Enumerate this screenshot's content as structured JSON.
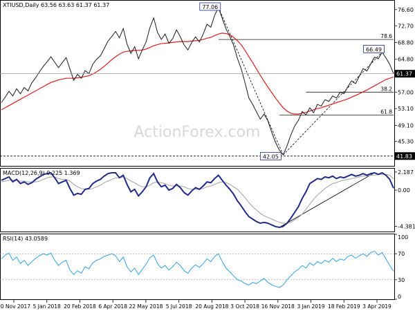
{
  "chart_data": [
    {
      "type": "line",
      "panel": "price",
      "header": "XTIUSD,Daily  63.56 63.63 61.37 61.37",
      "watermark": "ActionForex.com",
      "ylim": [
        39.5,
        78.7
      ],
      "y_ticks": [
        76.6,
        72.7,
        68.8,
        64.8,
        61.37,
        57.0,
        53.1,
        49.1,
        45.3
      ],
      "last_price": 61.37,
      "last_price_label": "61.37",
      "x_tick_labels": [
        "20 Nov 2017",
        "5 Jan 2018",
        "20 Feb 2018",
        "6 Apr 2018",
        "22 May 2018",
        "5 Jul 2018",
        "20 Aug 2018",
        "3 Oct 2018",
        "16 Nov 2018",
        "3 Jan 2019",
        "18 Feb 2019",
        "3 Apr 2019"
      ],
      "series": [
        {
          "values": [
            54.5,
            55.8,
            57.2,
            56.1,
            57.8,
            56.6,
            58.1,
            57.3,
            59.2,
            60.4,
            61.8,
            63.1,
            64.2,
            65.4,
            64.1,
            62.8,
            64.0,
            65.2,
            62.5,
            59.8,
            61.2,
            60.3,
            62.1,
            61.4,
            63.6,
            64.8,
            65.6,
            67.3,
            69.1,
            70.2,
            71.4,
            69.9,
            72.1,
            68.4,
            66.2,
            67.8,
            64.9,
            67.0,
            68.9,
            72.3,
            74.6,
            71.2,
            69.5,
            70.8,
            68.6,
            69.7,
            71.8,
            70.1,
            68.2,
            67.0,
            68.8,
            70.1,
            68.9,
            70.8,
            73.1,
            72.4,
            75.2,
            77.1,
            74.5,
            72.0,
            70.2,
            68.1,
            65.0,
            62.5,
            59.2,
            55.6,
            54.1,
            52.3,
            50.6,
            51.8,
            50.2,
            47.5,
            45.1,
            43.2,
            42.1,
            44.2,
            46.8,
            48.9,
            50.3,
            52.4,
            51.6,
            53.3,
            52.1,
            54.1,
            53.7,
            55.2,
            54.8,
            56.1,
            55.6,
            57.0,
            56.6,
            58.3,
            59.7,
            59.0,
            60.8,
            62.6,
            62.0,
            63.7,
            65.3,
            64.9,
            66.5,
            65.1,
            63.6,
            61.4
          ],
          "color": "#1a1a1a"
        },
        {
          "values": [
            52.8,
            53.3,
            53.8,
            54.3,
            54.8,
            55.3,
            55.8,
            56.3,
            56.8,
            57.3,
            57.8,
            58.3,
            58.8,
            59.3,
            59.6,
            59.9,
            60.1,
            60.3,
            60.3,
            60.3,
            60.4,
            60.5,
            60.7,
            60.9,
            61.3,
            61.8,
            62.4,
            63.1,
            63.9,
            64.7,
            65.4,
            66.0,
            66.5,
            66.7,
            66.8,
            66.9,
            66.9,
            67.0,
            67.2,
            67.6,
            68.0,
            68.3,
            68.5,
            68.6,
            68.7,
            68.8,
            68.9,
            69.0,
            69.0,
            69.0,
            69.1,
            69.2,
            69.3,
            69.5,
            69.8,
            70.0,
            70.4,
            70.8,
            71.0,
            70.9,
            70.6,
            70.0,
            69.2,
            68.2,
            66.9,
            65.4,
            64.0,
            62.5,
            61.0,
            59.6,
            58.2,
            56.9,
            55.6,
            54.4,
            53.3,
            52.5,
            52.0,
            51.8,
            51.8,
            52.0,
            52.2,
            52.5,
            52.8,
            53.1,
            53.3,
            53.6,
            53.9,
            54.2,
            54.5,
            54.8,
            55.1,
            55.4,
            55.8,
            56.2,
            56.6,
            57.1,
            57.5,
            58.0,
            58.5,
            59.0,
            59.5,
            60.0,
            60.3,
            60.6
          ],
          "color": "#e01b1b"
        }
      ],
      "annotations": [
        {
          "label": "77.06",
          "value": 77.06
        },
        {
          "label": "42.05",
          "value": 42.05
        },
        {
          "label": "41.83",
          "value": 41.83
        },
        {
          "label": "66.49",
          "value": 66.49
        },
        {
          "label": "78.6",
          "value": 69.5
        },
        {
          "label": "38.2",
          "value": 57.0
        },
        {
          "label": "61.8",
          "value": 51.55
        }
      ]
    },
    {
      "type": "line",
      "panel": "macd",
      "header": "MACD(12,26,9) 0.225 1.369",
      "ylim": [
        -5.0,
        2.6
      ],
      "y_ticks": [
        2.187,
        0.0,
        -4.381
      ],
      "y_tick_labels": [
        "2.187",
        "0.00",
        "-4.381"
      ],
      "series": [
        {
          "values": [
            1.2,
            1.4,
            1.6,
            1.0,
            1.3,
            0.8,
            1.0,
            0.7,
            0.9,
            1.3,
            1.6,
            1.9,
            2.0,
            2.1,
            1.5,
            0.8,
            1.0,
            1.2,
            0.2,
            -0.6,
            -0.4,
            -0.5,
            0.1,
            0.2,
            0.8,
            1.1,
            1.3,
            1.7,
            2.0,
            2.1,
            2.1,
            1.5,
            1.8,
            0.7,
            -0.2,
            0.1,
            -0.7,
            -0.2,
            0.4,
            1.5,
            2.0,
            1.0,
            0.4,
            0.6,
            0.0,
            0.2,
            0.7,
            0.3,
            -0.3,
            -0.6,
            -0.1,
            0.3,
            0.1,
            0.5,
            1.0,
            0.9,
            1.4,
            1.8,
            1.2,
            0.6,
            0.1,
            -0.5,
            -1.3,
            -1.9,
            -2.6,
            -3.2,
            -3.5,
            -3.8,
            -4.0,
            -3.9,
            -4.0,
            -4.2,
            -4.4,
            -4.5,
            -4.38,
            -4.0,
            -3.4,
            -2.7,
            -2.0,
            -1.0,
            -0.2,
            0.8,
            1.1,
            1.4,
            1.3,
            1.6,
            1.5,
            1.7,
            1.4,
            1.6,
            1.5,
            1.7,
            1.9,
            1.7,
            1.8,
            2.0,
            1.8,
            2.0,
            2.1,
            1.9,
            2.1,
            1.8,
            1.3,
            0.225
          ],
          "color": "#1f2a8a"
        },
        {
          "values": [
            1.0,
            1.1,
            1.2,
            1.2,
            1.2,
            1.1,
            1.1,
            1.0,
            1.0,
            1.0,
            1.1,
            1.3,
            1.5,
            1.6,
            1.6,
            1.4,
            1.3,
            1.3,
            1.1,
            0.7,
            0.4,
            0.2,
            0.1,
            0.1,
            0.2,
            0.4,
            0.6,
            0.9,
            1.1,
            1.3,
            1.5,
            1.5,
            1.6,
            1.4,
            1.1,
            0.9,
            0.6,
            0.4,
            0.4,
            0.6,
            0.9,
            1.0,
            0.9,
            0.8,
            0.6,
            0.5,
            0.5,
            0.5,
            0.4,
            0.2,
            0.1,
            0.1,
            0.1,
            0.2,
            0.4,
            0.5,
            0.7,
            0.9,
            1.0,
            0.9,
            0.7,
            0.4,
            0.1,
            -0.4,
            -0.9,
            -1.5,
            -2.0,
            -2.4,
            -2.8,
            -3.1,
            -3.3,
            -3.5,
            -3.7,
            -3.9,
            -4.0,
            -4.0,
            -3.9,
            -3.6,
            -3.3,
            -2.9,
            -2.3,
            -1.7,
            -1.1,
            -0.6,
            -0.2,
            0.2,
            0.5,
            0.8,
            0.9,
            1.1,
            1.2,
            1.3,
            1.4,
            1.5,
            1.6,
            1.7,
            1.7,
            1.8,
            1.8,
            1.9,
            1.9,
            1.9,
            1.8,
            1.369
          ],
          "color": "#a0a0a0"
        }
      ]
    },
    {
      "type": "line",
      "panel": "rsi",
      "header": "RSI(14) 43.0589",
      "ylim": [
        0,
        100
      ],
      "y_ticks": [
        100,
        70,
        30,
        0
      ],
      "y_tick_labels": [
        "100",
        "70",
        "30",
        "0"
      ],
      "series": [
        {
          "values": [
            62,
            68,
            71,
            60,
            65,
            55,
            60,
            52,
            58,
            63,
            67,
            70,
            68,
            71,
            60,
            52,
            57,
            60,
            45,
            38,
            44,
            40,
            50,
            47,
            56,
            60,
            62,
            66,
            68,
            70,
            67,
            58,
            65,
            50,
            42,
            48,
            38,
            46,
            54,
            64,
            68,
            55,
            48,
            52,
            45,
            50,
            57,
            52,
            44,
            40,
            48,
            53,
            49,
            55,
            62,
            58,
            66,
            70,
            58,
            48,
            42,
            36,
            30,
            28,
            24,
            22,
            26,
            24,
            28,
            32,
            26,
            22,
            20,
            18,
            22,
            30,
            36,
            42,
            46,
            52,
            48,
            56,
            52,
            58,
            55,
            60,
            57,
            63,
            58,
            62,
            60,
            66,
            68,
            63,
            67,
            70,
            66,
            72,
            74,
            68,
            72,
            62,
            52,
            43.06
          ],
          "color": "#2fa3e8"
        }
      ]
    }
  ]
}
